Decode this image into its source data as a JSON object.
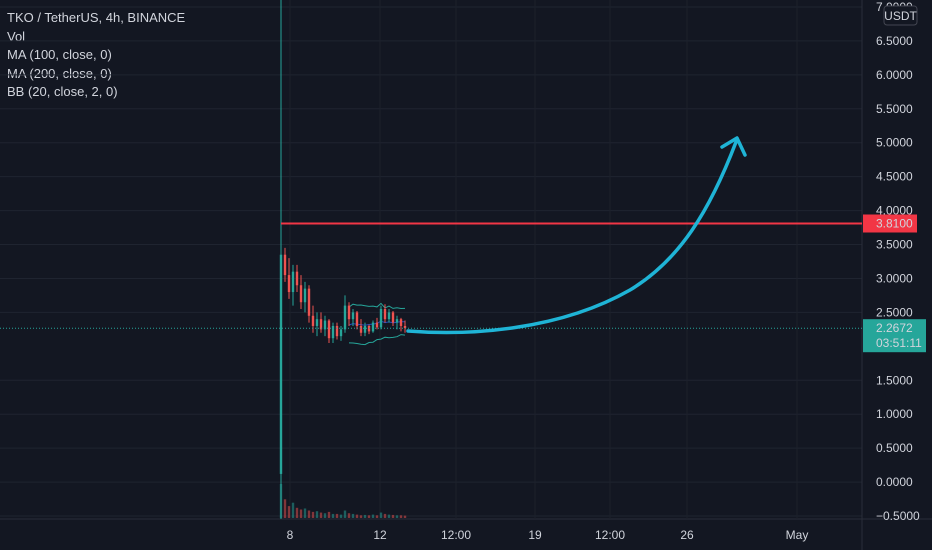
{
  "chart_data": {
    "type": "candlestick",
    "symbol_line": "TKO / TetherUS, 4h, BINANCE",
    "indicators": [
      "Vol",
      "MA (100, close, 0)",
      "MA (200, close, 0)",
      "BB (20, close, 2, 0)"
    ],
    "currency_label": "USDT",
    "y_axis": {
      "range": [
        -0.55,
        7.05
      ],
      "ticks": [
        "7.0000",
        "6.5000",
        "6.0000",
        "5.5000",
        "5.0000",
        "4.5000",
        "4.0000",
        "3.5000",
        "3.0000",
        "2.5000",
        "1.5000",
        "1.0000",
        "0.5000",
        "0.0000",
        "−0.5000"
      ]
    },
    "x_axis": {
      "ticks": [
        "8",
        "12",
        "12:00",
        "19",
        "12:00",
        "26",
        "May"
      ]
    },
    "horizontal_level": {
      "value": 3.81,
      "label": "3.8100",
      "color": "#f23645"
    },
    "last_price": {
      "value": 2.2672,
      "label": "2.2672",
      "countdown": "03:51:11",
      "color": "#26a69a"
    },
    "listing_line_color": "#26a69a",
    "projection_arrow": {
      "color": "#1fb4d6",
      "direction": "up",
      "target_approx": 5.0
    },
    "candles": [
      {
        "o": 0.12,
        "h": 3.4,
        "l": 0.1,
        "c": 3.35
      },
      {
        "o": 3.35,
        "h": 3.45,
        "l": 2.95,
        "c": 3.05
      },
      {
        "o": 3.05,
        "h": 3.3,
        "l": 2.7,
        "c": 2.8
      },
      {
        "o": 2.8,
        "h": 3.2,
        "l": 2.6,
        "c": 3.1
      },
      {
        "o": 3.1,
        "h": 3.2,
        "l": 2.8,
        "c": 2.9
      },
      {
        "o": 2.9,
        "h": 3.05,
        "l": 2.55,
        "c": 2.65
      },
      {
        "o": 2.65,
        "h": 2.95,
        "l": 2.5,
        "c": 2.85
      },
      {
        "o": 2.85,
        "h": 2.9,
        "l": 2.35,
        "c": 2.45
      },
      {
        "o": 2.45,
        "h": 2.6,
        "l": 2.2,
        "c": 2.3
      },
      {
        "o": 2.3,
        "h": 2.5,
        "l": 2.15,
        "c": 2.4
      },
      {
        "o": 2.4,
        "h": 2.5,
        "l": 2.2,
        "c": 2.25
      },
      {
        "o": 2.25,
        "h": 2.45,
        "l": 2.15,
        "c": 2.38
      },
      {
        "o": 2.38,
        "h": 2.4,
        "l": 2.05,
        "c": 2.12
      },
      {
        "o": 2.12,
        "h": 2.35,
        "l": 2.05,
        "c": 2.3
      },
      {
        "o": 2.3,
        "h": 2.35,
        "l": 2.1,
        "c": 2.15
      },
      {
        "o": 2.15,
        "h": 2.3,
        "l": 2.08,
        "c": 2.25
      },
      {
        "o": 2.25,
        "h": 2.75,
        "l": 2.2,
        "c": 2.6
      },
      {
        "o": 2.6,
        "h": 2.65,
        "l": 2.3,
        "c": 2.4
      },
      {
        "o": 2.4,
        "h": 2.55,
        "l": 2.3,
        "c": 2.5
      },
      {
        "o": 2.5,
        "h": 2.52,
        "l": 2.25,
        "c": 2.3
      },
      {
        "o": 2.3,
        "h": 2.4,
        "l": 2.15,
        "c": 2.2
      },
      {
        "o": 2.2,
        "h": 2.35,
        "l": 2.15,
        "c": 2.3
      },
      {
        "o": 2.3,
        "h": 2.32,
        "l": 2.18,
        "c": 2.22
      },
      {
        "o": 2.22,
        "h": 2.38,
        "l": 2.2,
        "c": 2.35
      },
      {
        "o": 2.35,
        "h": 2.42,
        "l": 2.25,
        "c": 2.28
      },
      {
        "o": 2.28,
        "h": 2.6,
        "l": 2.25,
        "c": 2.55
      },
      {
        "o": 2.55,
        "h": 2.62,
        "l": 2.35,
        "c": 2.4
      },
      {
        "o": 2.4,
        "h": 2.55,
        "l": 2.35,
        "c": 2.5
      },
      {
        "o": 2.5,
        "h": 2.52,
        "l": 2.3,
        "c": 2.35
      },
      {
        "o": 2.35,
        "h": 2.45,
        "l": 2.25,
        "c": 2.4
      },
      {
        "o": 2.4,
        "h": 2.42,
        "l": 2.22,
        "c": 2.3
      },
      {
        "o": 2.3,
        "h": 2.38,
        "l": 2.2,
        "c": 2.27
      }
    ],
    "volumes": [
      1.0,
      0.55,
      0.35,
      0.45,
      0.3,
      0.25,
      0.28,
      0.22,
      0.18,
      0.2,
      0.16,
      0.14,
      0.18,
      0.12,
      0.12,
      0.1,
      0.22,
      0.14,
      0.12,
      0.1,
      0.08,
      0.09,
      0.08,
      0.1,
      0.08,
      0.16,
      0.12,
      0.1,
      0.09,
      0.08,
      0.08,
      0.07
    ]
  }
}
